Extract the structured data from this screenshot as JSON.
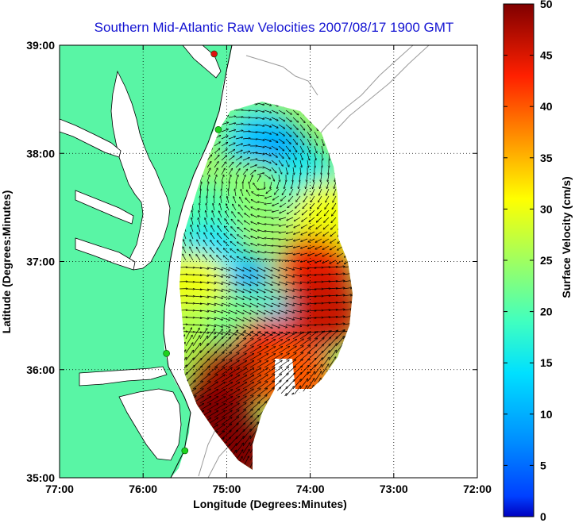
{
  "chart_data": {
    "type": "heatmap",
    "title": "Southern Mid-Atlantic Raw Velocities 2007/08/17 1900 GMT",
    "xlabel": "Longitude (Degrees:Minutes)",
    "ylabel": "Latitude (Degrees:Minutes)",
    "xlim": [
      -77,
      -72
    ],
    "ylim": [
      35,
      39
    ],
    "x_ticks": [
      {
        "value": -77,
        "label": "77:00"
      },
      {
        "value": -76,
        "label": "76:00"
      },
      {
        "value": -75,
        "label": "75:00"
      },
      {
        "value": -74,
        "label": "74:00"
      },
      {
        "value": -73,
        "label": "73:00"
      },
      {
        "value": -72,
        "label": "72:00"
      }
    ],
    "y_ticks": [
      {
        "value": 35,
        "label": "35:00"
      },
      {
        "value": 36,
        "label": "36:00"
      },
      {
        "value": 37,
        "label": "37:00"
      },
      {
        "value": 38,
        "label": "38:00"
      },
      {
        "value": 39,
        "label": "39:00"
      }
    ],
    "grid": true,
    "colorbar": {
      "label": "Surface Velocity (cm/s)",
      "range": [
        0,
        50
      ],
      "ticks": [
        {
          "value": 0,
          "label": "0"
        },
        {
          "value": 5,
          "label": "5"
        },
        {
          "value": 10,
          "label": "10"
        },
        {
          "value": 15,
          "label": "15"
        },
        {
          "value": 20,
          "label": "20"
        },
        {
          "value": 25,
          "label": "25"
        },
        {
          "value": 30,
          "label": "30"
        },
        {
          "value": 35,
          "label": "35"
        },
        {
          "value": 40,
          "label": "40"
        },
        {
          "value": 45,
          "label": "45"
        },
        {
          "value": 50,
          "label": "50"
        }
      ],
      "colormap": "jet"
    },
    "colors": {
      "land": "#59f5a5",
      "title": "#1414d2",
      "coast": "#000000",
      "bathymetry": "#9a9a9a",
      "station": "#1ed21e",
      "station_alert": "#e01010"
    },
    "speed_regions": [
      {
        "lon": -74.8,
        "lat": 38.25,
        "speed": 22
      },
      {
        "lon": -74.55,
        "lat": 38.05,
        "speed": 12
      },
      {
        "lon": -74.3,
        "lat": 37.85,
        "speed": 9
      },
      {
        "lon": -74.05,
        "lat": 37.7,
        "speed": 16
      },
      {
        "lon": -73.8,
        "lat": 37.4,
        "speed": 30
      },
      {
        "lon": -74.75,
        "lat": 37.6,
        "speed": 24
      },
      {
        "lon": -75.3,
        "lat": 37.4,
        "speed": 20
      },
      {
        "lon": -75.2,
        "lat": 37.0,
        "speed": 14
      },
      {
        "lon": -75.4,
        "lat": 36.75,
        "speed": 30
      },
      {
        "lon": -74.55,
        "lat": 36.7,
        "speed": 9
      },
      {
        "lon": -74.1,
        "lat": 36.85,
        "speed": 24
      },
      {
        "lon": -73.95,
        "lat": 36.9,
        "speed": 44
      },
      {
        "lon": -75.3,
        "lat": 36.3,
        "speed": 26
      },
      {
        "lon": -74.75,
        "lat": 36.4,
        "speed": 22
      },
      {
        "lon": -74.25,
        "lat": 36.35,
        "speed": 14
      },
      {
        "lon": -74.5,
        "lat": 36.15,
        "speed": 44
      },
      {
        "lon": -75.0,
        "lat": 35.9,
        "speed": 48
      },
      {
        "lon": -75.2,
        "lat": 35.5,
        "speed": 50
      },
      {
        "lon": -74.9,
        "lat": 35.25,
        "speed": 50
      },
      {
        "lon": -74.2,
        "lat": 35.95,
        "speed": 40
      },
      {
        "lon": -73.85,
        "lat": 36.55,
        "speed": 46
      }
    ],
    "stations": [
      {
        "lon": -75.15,
        "lat": 38.92,
        "status": "alert"
      },
      {
        "lon": -75.1,
        "lat": 38.22,
        "status": "ok"
      },
      {
        "lon": -75.72,
        "lat": 36.15,
        "status": "ok"
      },
      {
        "lon": -75.5,
        "lat": 35.25,
        "status": "ok"
      }
    ]
  }
}
